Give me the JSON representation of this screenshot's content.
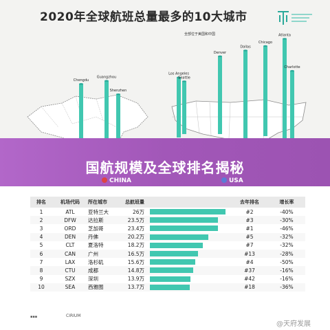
{
  "title": "2020年全球航班总量最多的10大城市",
  "subhead": "全部位于美国和中国",
  "banner": "国航规模及全球排名揭秘",
  "legend": {
    "cn": "CHINA",
    "us": "USA"
  },
  "colors": {
    "accent": "#41c7b0",
    "banner": "#a257b8",
    "china_dot": "#d44444",
    "usa_dot": "#5b7bd5"
  },
  "map_cities": [
    {
      "name": "Chengdu",
      "flights_wan": 14.8
    },
    {
      "name": "Guangzhou",
      "flights_wan": 16.5
    },
    {
      "name": "Shenzhen",
      "flights_wan": 13.9
    },
    {
      "name": "Los Angeles",
      "flights_wan": 15.6
    },
    {
      "name": "Seattle",
      "flights_wan": 13.7
    },
    {
      "name": "Denver",
      "flights_wan": 20.2
    },
    {
      "name": "Dallas",
      "flights_wan": 23.5
    },
    {
      "name": "Chicago",
      "flights_wan": 23.4
    },
    {
      "name": "Atlanta",
      "flights_wan": 26.0
    },
    {
      "name": "Charlotte",
      "flights_wan": 18.2
    }
  ],
  "table": {
    "headers": {
      "rank": "排名",
      "code": "机场代码",
      "city": "所在城市",
      "vol": "总航班量",
      "prev": "去年排名",
      "growth": "增长率"
    },
    "rows": [
      {
        "rank": "1",
        "code": "ATL",
        "city": "亚特兰大",
        "vol": "26万",
        "prev": "#2",
        "growth": "-40%"
      },
      {
        "rank": "2",
        "code": "DFW",
        "city": "达拉斯",
        "vol": "23.5万",
        "prev": "#3",
        "growth": "-30%"
      },
      {
        "rank": "3",
        "code": "ORD",
        "city": "芝加哥",
        "vol": "23.4万",
        "prev": "#1",
        "growth": "-46%"
      },
      {
        "rank": "4",
        "code": "DEN",
        "city": "丹佛",
        "vol": "20.2万",
        "prev": "#5",
        "growth": "-32%"
      },
      {
        "rank": "5",
        "code": "CLT",
        "city": "夏洛特",
        "vol": "18.2万",
        "prev": "#7",
        "growth": "-32%"
      },
      {
        "rank": "6",
        "code": "CAN",
        "city": "广州",
        "vol": "16.5万",
        "prev": "#13",
        "growth": "-28%"
      },
      {
        "rank": "7",
        "code": "LAX",
        "city": "洛杉矶",
        "vol": "15.6万",
        "prev": "#4",
        "growth": "-50%"
      },
      {
        "rank": "8",
        "code": "CTU",
        "city": "成都",
        "vol": "14.8万",
        "prev": "#37",
        "growth": "-16%"
      },
      {
        "rank": "9",
        "code": "SZX",
        "city": "深圳",
        "vol": "13.9万",
        "prev": "#42",
        "growth": "-16%"
      },
      {
        "rank": "10",
        "code": "SEA",
        "city": "西雅图",
        "vol": "13.7万",
        "prev": "#18",
        "growth": "-36%"
      }
    ]
  },
  "chart_data": {
    "type": "bar",
    "categories": [
      "ATL",
      "DFW",
      "ORD",
      "DEN",
      "CLT",
      "CAN",
      "LAX",
      "CTU",
      "SZX",
      "SEA"
    ],
    "values": [
      26.0,
      23.5,
      23.4,
      20.2,
      18.2,
      16.5,
      15.6,
      14.8,
      13.9,
      13.7
    ],
    "title": "2020年全球航班总量最多的10大城市",
    "xlabel": "",
    "ylabel": "总航班量",
    "ylim": [
      0,
      26
    ]
  },
  "footer": {
    "cirium": "CIRIUM"
  },
  "watermark": "@天府发展"
}
